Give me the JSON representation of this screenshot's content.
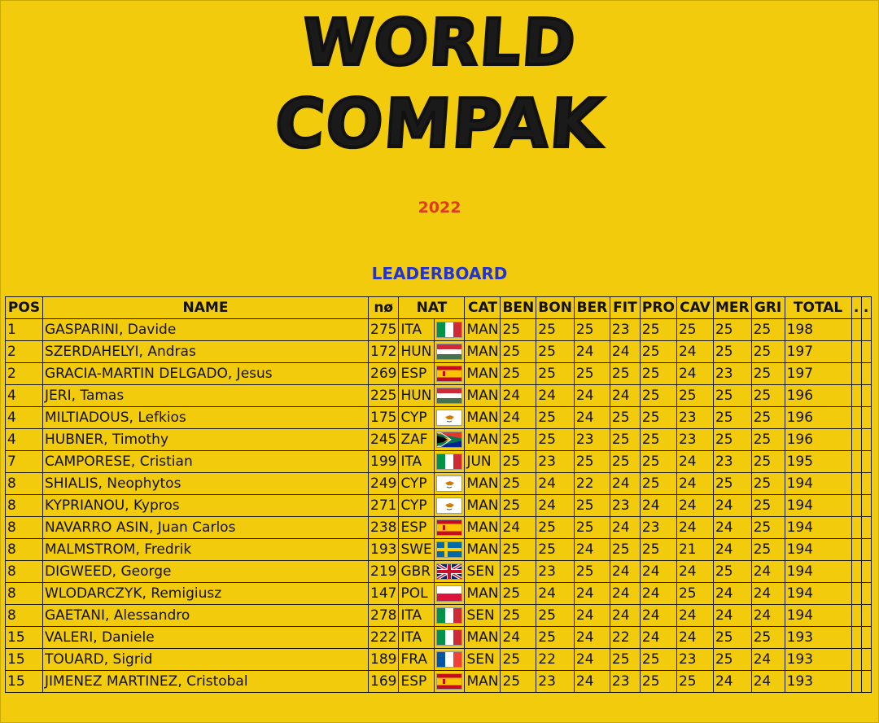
{
  "header": {
    "logo_line1": "WORLD",
    "logo_line2": "COMPAK",
    "year": "2022",
    "subtitle": "LEADERBOARD"
  },
  "table": {
    "columns": [
      "POS",
      "NAME",
      "nø",
      "NAT",
      "",
      "CAT",
      "BEN",
      "BON",
      "BER",
      "FIT",
      "PRO",
      "CAV",
      "MER",
      "GRI",
      "TOTAL",
      ".",
      "."
    ],
    "rows": [
      {
        "pos": "1",
        "name": "GASPARINI, Davide",
        "no": "275",
        "nat": "ITA",
        "flag": "ita",
        "cat": "MAN",
        "scores": [
          "25",
          "25",
          "25",
          "23",
          "25",
          "25",
          "25",
          "25"
        ],
        "total": "198"
      },
      {
        "pos": "2",
        "name": "SZERDAHELYI, Andras",
        "no": "172",
        "nat": "HUN",
        "flag": "hun",
        "cat": "MAN",
        "scores": [
          "25",
          "25",
          "24",
          "24",
          "25",
          "24",
          "25",
          "25"
        ],
        "total": "197"
      },
      {
        "pos": "2",
        "name": "GRACIA-MARTIN DELGADO, Jesus",
        "no": "269",
        "nat": "ESP",
        "flag": "esp",
        "cat": "MAN",
        "scores": [
          "25",
          "25",
          "25",
          "25",
          "25",
          "24",
          "23",
          "25"
        ],
        "total": "197"
      },
      {
        "pos": "4",
        "name": "JERI, Tamas",
        "no": "225",
        "nat": "HUN",
        "flag": "hun",
        "cat": "MAN",
        "scores": [
          "24",
          "24",
          "24",
          "24",
          "25",
          "25",
          "25",
          "25"
        ],
        "total": "196"
      },
      {
        "pos": "4",
        "name": "MILTIADOUS, Lefkios",
        "no": "175",
        "nat": "CYP",
        "flag": "cyp",
        "cat": "MAN",
        "scores": [
          "24",
          "25",
          "24",
          "25",
          "25",
          "23",
          "25",
          "25"
        ],
        "total": "196"
      },
      {
        "pos": "4",
        "name": "HUBNER, Timothy",
        "no": "245",
        "nat": "ZAF",
        "flag": "zaf",
        "cat": "MAN",
        "scores": [
          "25",
          "25",
          "23",
          "25",
          "25",
          "23",
          "25",
          "25"
        ],
        "total": "196"
      },
      {
        "pos": "7",
        "name": "CAMPORESE, Cristian",
        "no": "199",
        "nat": "ITA",
        "flag": "ita",
        "cat": "JUN",
        "scores": [
          "25",
          "23",
          "25",
          "25",
          "25",
          "24",
          "23",
          "25"
        ],
        "total": "195"
      },
      {
        "pos": "8",
        "name": "SHIALIS, Neophytos",
        "no": "249",
        "nat": "CYP",
        "flag": "cyp",
        "cat": "MAN",
        "scores": [
          "25",
          "24",
          "22",
          "24",
          "25",
          "24",
          "25",
          "25"
        ],
        "total": "194"
      },
      {
        "pos": "8",
        "name": "KYPRIANOU, Kypros",
        "no": "271",
        "nat": "CYP",
        "flag": "cyp",
        "cat": "MAN",
        "scores": [
          "25",
          "24",
          "25",
          "23",
          "24",
          "24",
          "24",
          "25"
        ],
        "total": "194"
      },
      {
        "pos": "8",
        "name": "NAVARRO ASIN, Juan Carlos",
        "no": "238",
        "nat": "ESP",
        "flag": "esp",
        "cat": "MAN",
        "scores": [
          "24",
          "25",
          "25",
          "24",
          "23",
          "24",
          "24",
          "25"
        ],
        "total": "194"
      },
      {
        "pos": "8",
        "name": "MALMSTROM, Fredrik",
        "no": "193",
        "nat": "SWE",
        "flag": "swe",
        "cat": "MAN",
        "scores": [
          "25",
          "25",
          "24",
          "25",
          "25",
          "21",
          "24",
          "25"
        ],
        "total": "194"
      },
      {
        "pos": "8",
        "name": "DIGWEED, George",
        "no": "219",
        "nat": "GBR",
        "flag": "gbr",
        "cat": "SEN",
        "scores": [
          "25",
          "23",
          "25",
          "24",
          "24",
          "24",
          "25",
          "24"
        ],
        "total": "194"
      },
      {
        "pos": "8",
        "name": "WLODARCZYK, Remigiusz",
        "no": "147",
        "nat": "POL",
        "flag": "pol",
        "cat": "MAN",
        "scores": [
          "25",
          "24",
          "24",
          "24",
          "24",
          "25",
          "24",
          "24"
        ],
        "total": "194"
      },
      {
        "pos": "8",
        "name": "GAETANI, Alessandro",
        "no": "278",
        "nat": "ITA",
        "flag": "ita",
        "cat": "SEN",
        "scores": [
          "25",
          "25",
          "24",
          "24",
          "24",
          "24",
          "24",
          "24"
        ],
        "total": "194"
      },
      {
        "pos": "15",
        "name": "VALERI, Daniele",
        "no": "222",
        "nat": "ITA",
        "flag": "ita",
        "cat": "MAN",
        "scores": [
          "24",
          "25",
          "24",
          "22",
          "24",
          "24",
          "25",
          "25"
        ],
        "total": "193"
      },
      {
        "pos": "15",
        "name": "TOUARD, Sigrid",
        "no": "189",
        "nat": "FRA",
        "flag": "fra",
        "cat": "SEN",
        "scores": [
          "25",
          "22",
          "24",
          "25",
          "25",
          "23",
          "25",
          "24"
        ],
        "total": "193"
      },
      {
        "pos": "15",
        "name": "JIMENEZ MARTINEZ, Cristobal",
        "no": "169",
        "nat": "ESP",
        "flag": "esp",
        "cat": "MAN",
        "scores": [
          "25",
          "23",
          "24",
          "23",
          "25",
          "25",
          "24",
          "24"
        ],
        "total": "193"
      }
    ]
  }
}
